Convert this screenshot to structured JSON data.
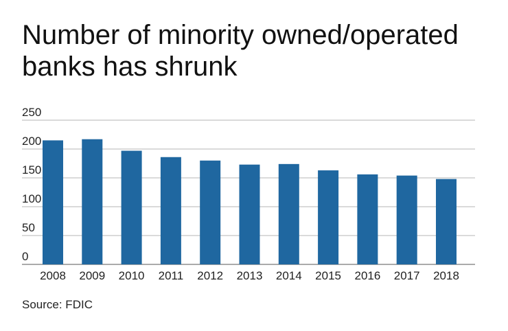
{
  "chart_data": {
    "type": "bar",
    "title": "Number of minority owned/operated banks has shrunk",
    "xlabel": "",
    "ylabel": "",
    "categories": [
      "2008",
      "2009",
      "2010",
      "2011",
      "2012",
      "2013",
      "2014",
      "2015",
      "2016",
      "2017",
      "2018"
    ],
    "values": [
      215,
      217,
      197,
      186,
      180,
      173,
      174,
      163,
      156,
      154,
      148
    ],
    "ylim": [
      0,
      250
    ],
    "yticks": [
      "0",
      "50",
      "100",
      "150",
      "200",
      "250"
    ],
    "grid": true,
    "legend": "none",
    "bar_color": "#1f67a0",
    "source": "Source: FDIC"
  }
}
